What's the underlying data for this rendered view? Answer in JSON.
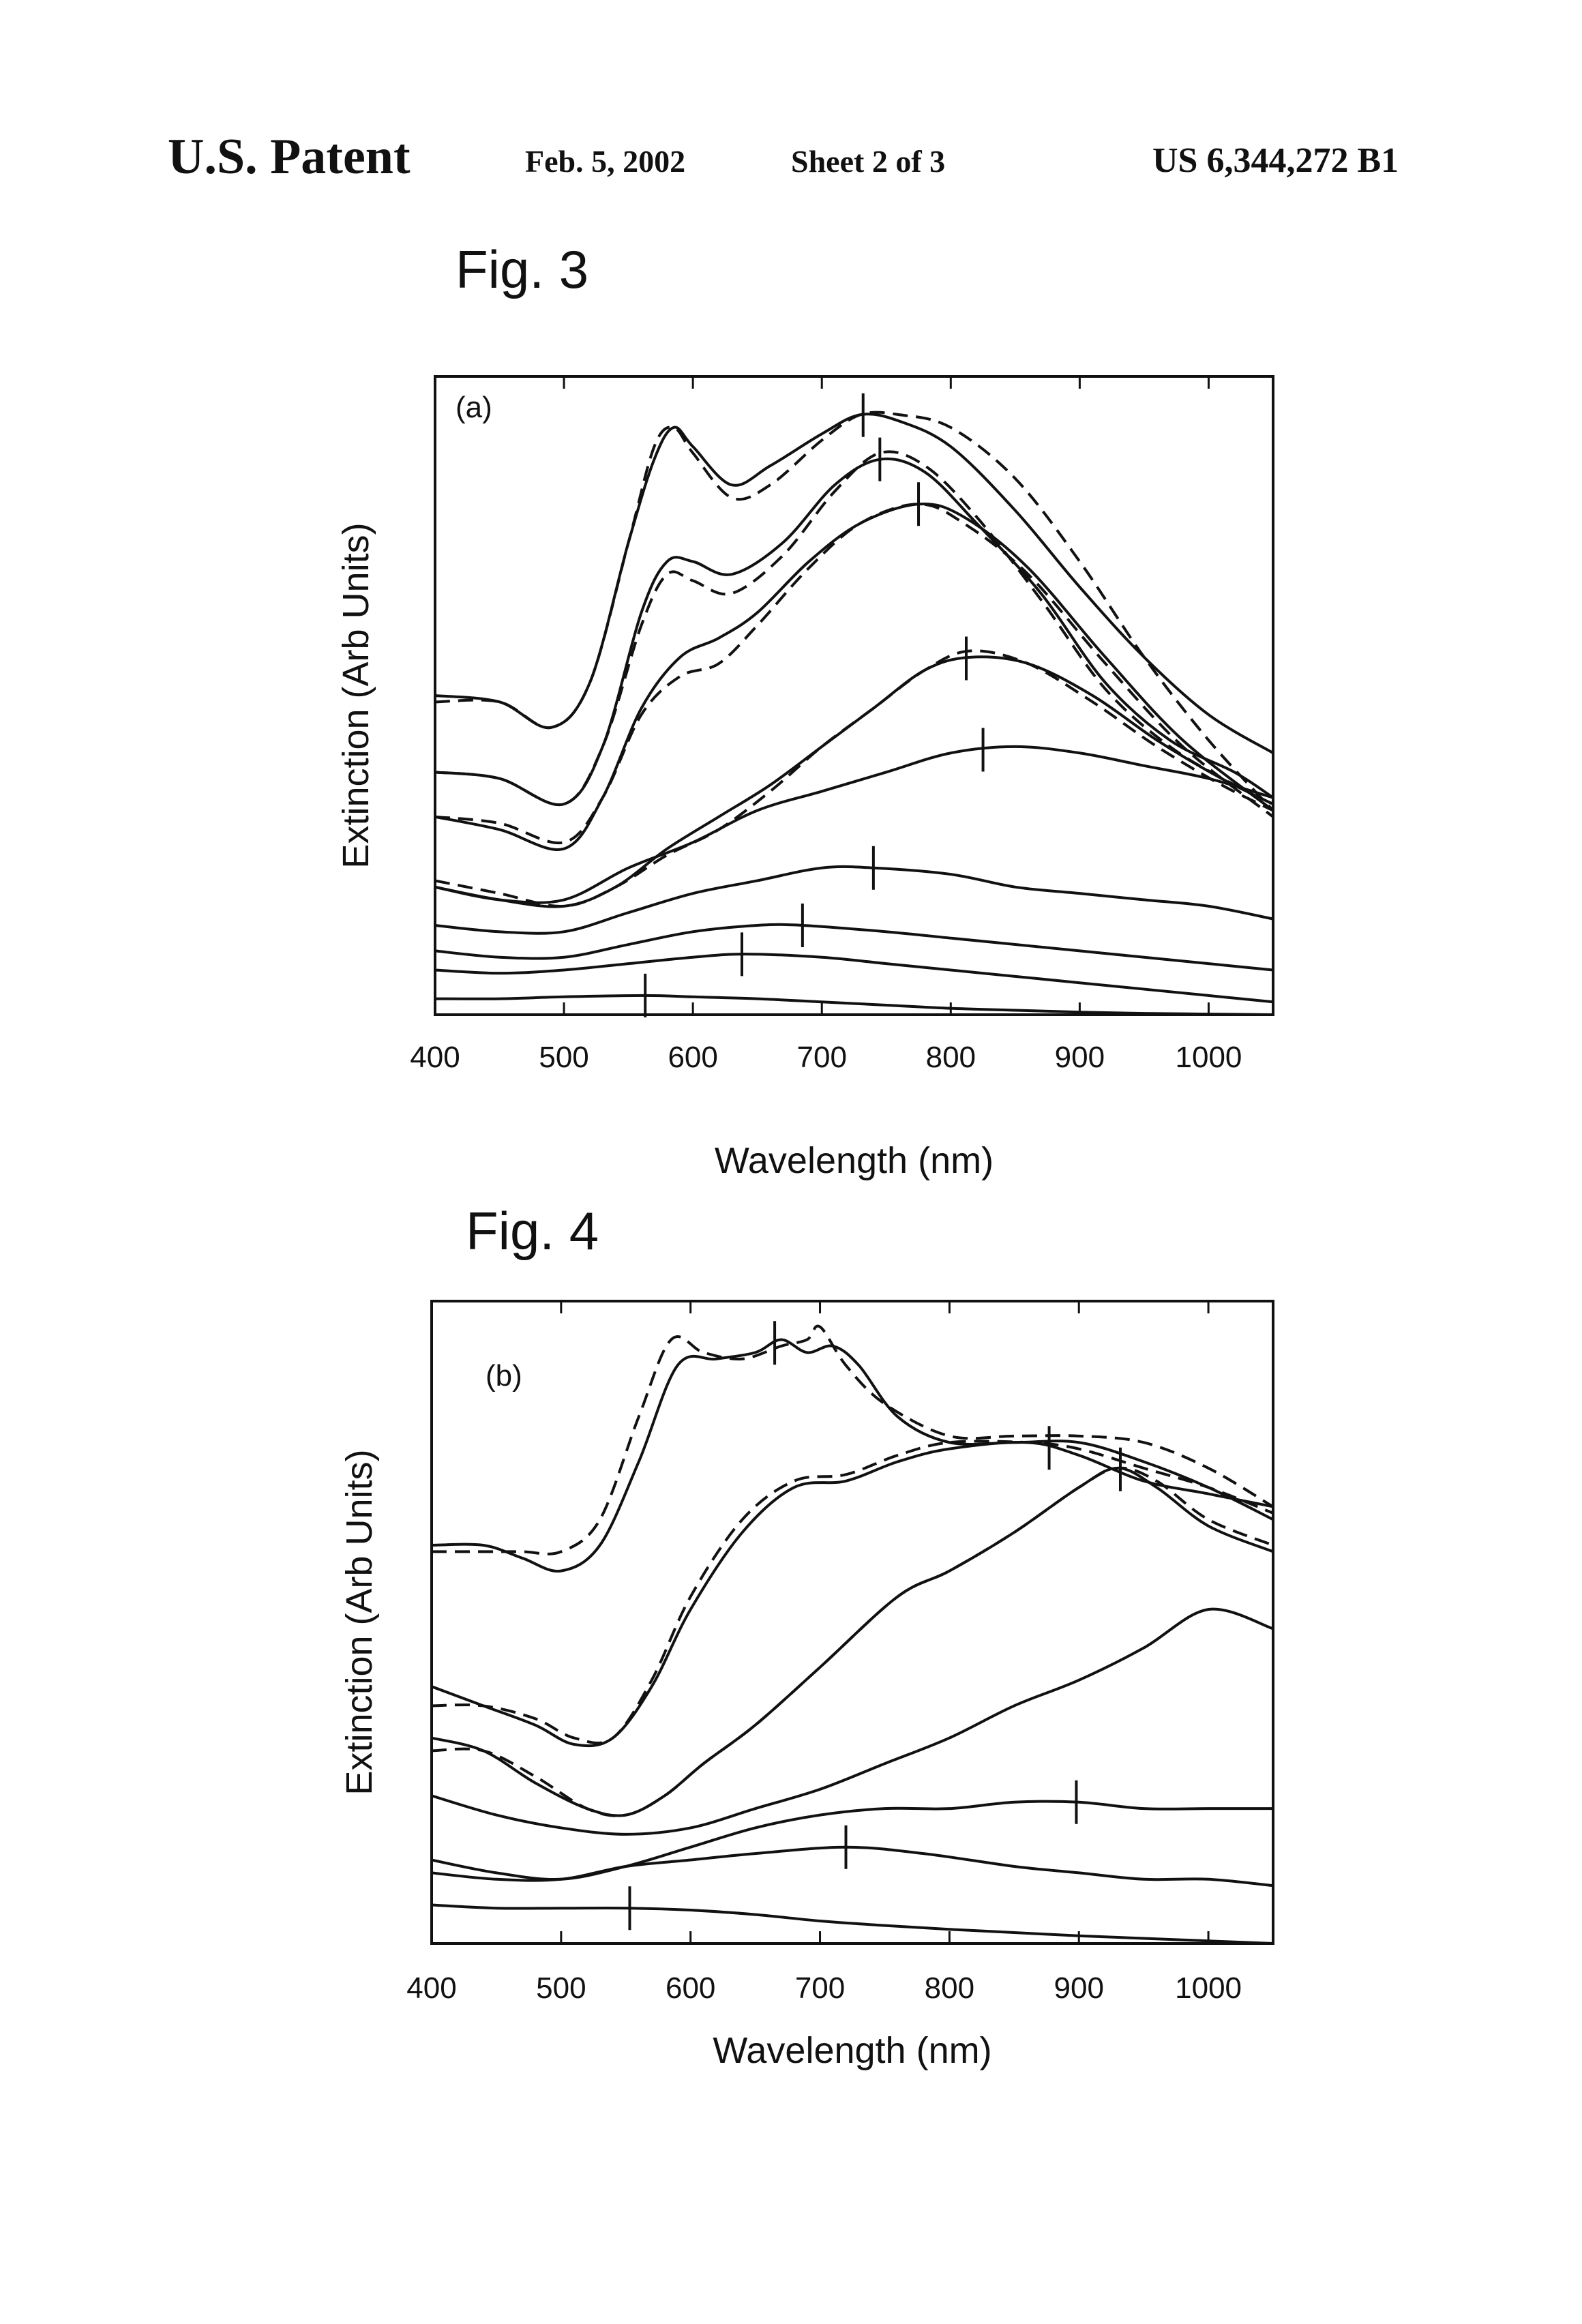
{
  "header": {
    "title": "U.S. Patent",
    "date": "Feb. 5, 2002",
    "sheet": "Sheet 2 of 3",
    "patent_number": "US 6,344,272 B1"
  },
  "chart_data": [
    {
      "type": "line",
      "figure_label": "Fig. 3",
      "panel_label": "(a)",
      "xlabel": "Wavelength (nm)",
      "ylabel": "Extinction (Arb Units)",
      "xlim": [
        400,
        1050
      ],
      "ylim": [
        0,
        1
      ],
      "x_ticks": [
        400,
        500,
        600,
        700,
        800,
        900,
        1000
      ],
      "grid": false,
      "series": [
        {
          "style": "solid",
          "x": [
            400,
            450,
            490,
            520,
            550,
            570,
            585,
            600,
            630,
            660,
            700,
            730,
            760,
            800,
            850,
            900,
            950,
            1000,
            1050
          ],
          "y": [
            0.5,
            0.49,
            0.45,
            0.52,
            0.74,
            0.87,
            0.92,
            0.89,
            0.83,
            0.86,
            0.91,
            0.94,
            0.93,
            0.89,
            0.79,
            0.67,
            0.56,
            0.47,
            0.41
          ],
          "marker_x": 732
        },
        {
          "style": "dashed",
          "x": [
            400,
            450,
            490,
            520,
            550,
            570,
            585,
            600,
            630,
            660,
            700,
            730,
            760,
            800,
            850,
            900,
            950,
            1000,
            1050
          ],
          "y": [
            0.49,
            0.49,
            0.45,
            0.52,
            0.74,
            0.89,
            0.92,
            0.88,
            0.81,
            0.83,
            0.9,
            0.94,
            0.94,
            0.92,
            0.84,
            0.71,
            0.56,
            0.43,
            0.32
          ],
          "marker_x": null
        },
        {
          "style": "solid",
          "x": [
            400,
            450,
            500,
            530,
            560,
            580,
            600,
            630,
            670,
            710,
            745,
            780,
            820,
            870,
            920,
            970,
            1020,
            1050
          ],
          "y": [
            0.38,
            0.37,
            0.33,
            0.42,
            0.63,
            0.71,
            0.71,
            0.69,
            0.74,
            0.83,
            0.87,
            0.85,
            0.77,
            0.66,
            0.52,
            0.43,
            0.38,
            0.34
          ],
          "marker_x": 745
        },
        {
          "style": "dashed",
          "x": [
            400,
            450,
            500,
            530,
            560,
            580,
            600,
            630,
            670,
            710,
            745,
            780,
            820,
            870,
            920,
            970,
            1020,
            1050
          ],
          "y": [
            0.38,
            0.37,
            0.33,
            0.42,
            0.61,
            0.69,
            0.68,
            0.66,
            0.72,
            0.82,
            0.88,
            0.86,
            0.78,
            0.65,
            0.51,
            0.42,
            0.36,
            0.33
          ],
          "marker_x": null
        },
        {
          "style": "solid",
          "x": [
            400,
            450,
            500,
            530,
            560,
            590,
            620,
            650,
            690,
            730,
            775,
            810,
            860,
            920,
            980,
            1050
          ],
          "y": [
            0.31,
            0.29,
            0.26,
            0.34,
            0.48,
            0.56,
            0.59,
            0.63,
            0.71,
            0.77,
            0.8,
            0.78,
            0.7,
            0.56,
            0.43,
            0.32
          ],
          "marker_x": 775
        },
        {
          "style": "dashed",
          "x": [
            400,
            450,
            500,
            530,
            560,
            590,
            620,
            650,
            690,
            730,
            775,
            810,
            860,
            920,
            980,
            1050
          ],
          "y": [
            0.31,
            0.3,
            0.27,
            0.34,
            0.47,
            0.53,
            0.55,
            0.61,
            0.7,
            0.77,
            0.8,
            0.77,
            0.69,
            0.55,
            0.42,
            0.31
          ],
          "marker_x": null
        },
        {
          "style": "solid",
          "x": [
            400,
            450,
            500,
            540,
            580,
            620,
            660,
            700,
            740,
            780,
            815,
            860,
            910,
            960,
            1010,
            1050
          ],
          "y": [
            0.2,
            0.18,
            0.17,
            0.2,
            0.26,
            0.31,
            0.36,
            0.42,
            0.48,
            0.54,
            0.56,
            0.55,
            0.5,
            0.43,
            0.37,
            0.33
          ],
          "marker_x": 812
        },
        {
          "style": "dashed",
          "x": [
            400,
            450,
            500,
            540,
            580,
            620,
            660,
            700,
            740,
            780,
            815,
            860,
            910,
            960,
            1010,
            1050
          ],
          "y": [
            0.21,
            0.19,
            0.17,
            0.2,
            0.25,
            0.29,
            0.35,
            0.42,
            0.48,
            0.54,
            0.57,
            0.55,
            0.49,
            0.42,
            0.36,
            0.32
          ],
          "marker_x": null
        },
        {
          "style": "solid",
          "x": [
            400,
            450,
            500,
            550,
            600,
            650,
            700,
            750,
            800,
            850,
            900,
            950,
            1000,
            1050
          ],
          "y": [
            0.2,
            0.18,
            0.18,
            0.23,
            0.27,
            0.32,
            0.35,
            0.38,
            0.41,
            0.42,
            0.41,
            0.39,
            0.37,
            0.34
          ],
          "marker_x": 825
        },
        {
          "style": "solid",
          "x": [
            400,
            450,
            500,
            550,
            600,
            650,
            700,
            740,
            800,
            850,
            900,
            950,
            1000,
            1050
          ],
          "y": [
            0.14,
            0.13,
            0.13,
            0.16,
            0.19,
            0.21,
            0.23,
            0.23,
            0.22,
            0.2,
            0.19,
            0.18,
            0.17,
            0.15
          ],
          "marker_x": 740
        },
        {
          "style": "solid",
          "x": [
            400,
            450,
            500,
            550,
            600,
            650,
            685,
            750,
            800,
            850,
            900,
            950,
            1000,
            1050
          ],
          "y": [
            0.1,
            0.09,
            0.09,
            0.11,
            0.13,
            0.14,
            0.14,
            0.13,
            0.12,
            0.11,
            0.1,
            0.09,
            0.08,
            0.07
          ],
          "marker_x": 685
        },
        {
          "style": "solid",
          "x": [
            400,
            450,
            500,
            550,
            600,
            640,
            700,
            750,
            800,
            850,
            900,
            950,
            1000,
            1050
          ],
          "y": [
            0.07,
            0.065,
            0.07,
            0.08,
            0.09,
            0.095,
            0.09,
            0.08,
            0.07,
            0.06,
            0.05,
            0.04,
            0.03,
            0.02
          ],
          "marker_x": 638
        },
        {
          "style": "solid",
          "x": [
            400,
            450,
            500,
            563,
            600,
            650,
            700,
            750,
            800,
            850,
            900,
            950,
            1000,
            1050
          ],
          "y": [
            0.025,
            0.025,
            0.028,
            0.03,
            0.028,
            0.025,
            0.02,
            0.015,
            0.01,
            0.007,
            0.004,
            0.002,
            0.001,
            0.0
          ],
          "marker_x": 563
        }
      ]
    },
    {
      "type": "line",
      "figure_label": "Fig. 4",
      "panel_label": "(b)",
      "xlabel": "Wavelength (nm)",
      "ylabel": "Extinction (Arb Units)",
      "xlim": [
        400,
        1050
      ],
      "ylim": [
        0,
        1
      ],
      "x_ticks": [
        400,
        500,
        600,
        700,
        800,
        900,
        1000
      ],
      "grid": false,
      "series": [
        {
          "style": "solid",
          "x": [
            400,
            440,
            470,
            500,
            530,
            560,
            590,
            620,
            650,
            670,
            690,
            710,
            730,
            760,
            800,
            850,
            900,
            950,
            1000,
            1050
          ],
          "y": [
            0.62,
            0.62,
            0.6,
            0.58,
            0.62,
            0.75,
            0.9,
            0.91,
            0.92,
            0.94,
            0.92,
            0.93,
            0.9,
            0.82,
            0.78,
            0.78,
            0.78,
            0.75,
            0.71,
            0.66
          ],
          "marker_x": 665
        },
        {
          "style": "dashed",
          "x": [
            400,
            440,
            470,
            500,
            530,
            560,
            585,
            610,
            640,
            670,
            690,
            700,
            720,
            750,
            800,
            850,
            900,
            950,
            1000,
            1050
          ],
          "y": [
            0.61,
            0.61,
            0.61,
            0.61,
            0.66,
            0.82,
            0.94,
            0.92,
            0.91,
            0.93,
            0.94,
            0.96,
            0.9,
            0.84,
            0.79,
            0.79,
            0.79,
            0.78,
            0.74,
            0.68
          ],
          "marker_x": null
        },
        {
          "style": "solid",
          "x": [
            400,
            440,
            480,
            510,
            540,
            570,
            600,
            640,
            680,
            720,
            760,
            800,
            860,
            900,
            950,
            1000,
            1050
          ],
          "y": [
            0.4,
            0.37,
            0.34,
            0.31,
            0.32,
            0.4,
            0.52,
            0.64,
            0.71,
            0.72,
            0.75,
            0.77,
            0.78,
            0.76,
            0.72,
            0.7,
            0.68
          ],
          "marker_x": 877
        },
        {
          "style": "dashed",
          "x": [
            400,
            440,
            480,
            510,
            540,
            570,
            600,
            640,
            680,
            720,
            760,
            800,
            860,
            900,
            950,
            1000,
            1050
          ],
          "y": [
            0.37,
            0.37,
            0.35,
            0.32,
            0.32,
            0.41,
            0.54,
            0.66,
            0.72,
            0.73,
            0.76,
            0.78,
            0.78,
            0.77,
            0.74,
            0.71,
            0.67
          ],
          "marker_x": null
        },
        {
          "style": "solid",
          "x": [
            400,
            440,
            480,
            520,
            550,
            580,
            610,
            650,
            700,
            760,
            800,
            850,
            900,
            930,
            960,
            1000,
            1050
          ],
          "y": [
            0.32,
            0.3,
            0.25,
            0.21,
            0.2,
            0.23,
            0.28,
            0.34,
            0.43,
            0.54,
            0.58,
            0.64,
            0.71,
            0.74,
            0.71,
            0.65,
            0.61
          ],
          "marker_x": 932
        },
        {
          "style": "dashed",
          "x": [
            400,
            440,
            480,
            520,
            550,
            580,
            610,
            650,
            700,
            760,
            800,
            850,
            900,
            930,
            960,
            1000,
            1050
          ],
          "y": [
            0.3,
            0.3,
            0.26,
            0.21,
            0.2,
            0.23,
            0.28,
            0.34,
            0.43,
            0.54,
            0.58,
            0.64,
            0.71,
            0.74,
            0.72,
            0.66,
            0.62
          ],
          "marker_x": null
        },
        {
          "style": "solid",
          "x": [
            400,
            450,
            500,
            550,
            600,
            650,
            700,
            750,
            800,
            850,
            900,
            950,
            1000,
            1050
          ],
          "y": [
            0.23,
            0.2,
            0.18,
            0.17,
            0.18,
            0.21,
            0.24,
            0.28,
            0.32,
            0.37,
            0.41,
            0.46,
            0.52,
            0.49
          ],
          "marker_x": null
        },
        {
          "style": "solid",
          "x": [
            400,
            450,
            500,
            550,
            600,
            650,
            700,
            750,
            800,
            850,
            900,
            950,
            1000,
            1050
          ],
          "y": [
            0.13,
            0.11,
            0.1,
            0.12,
            0.15,
            0.18,
            0.2,
            0.21,
            0.21,
            0.22,
            0.22,
            0.21,
            0.21,
            0.21
          ],
          "marker_x": 898
        },
        {
          "style": "solid",
          "x": [
            400,
            450,
            500,
            550,
            600,
            650,
            720,
            780,
            850,
            900,
            950,
            1000,
            1050
          ],
          "y": [
            0.11,
            0.1,
            0.1,
            0.12,
            0.13,
            0.14,
            0.15,
            0.14,
            0.12,
            0.11,
            0.1,
            0.1,
            0.09
          ],
          "marker_x": 720
        },
        {
          "style": "solid",
          "x": [
            400,
            450,
            500,
            553,
            600,
            650,
            700,
            750,
            800,
            850,
            900,
            950,
            1000,
            1050
          ],
          "y": [
            0.06,
            0.055,
            0.055,
            0.055,
            0.052,
            0.045,
            0.035,
            0.028,
            0.022,
            0.017,
            0.012,
            0.008,
            0.004,
            0.0
          ],
          "marker_x": 553
        }
      ]
    }
  ]
}
